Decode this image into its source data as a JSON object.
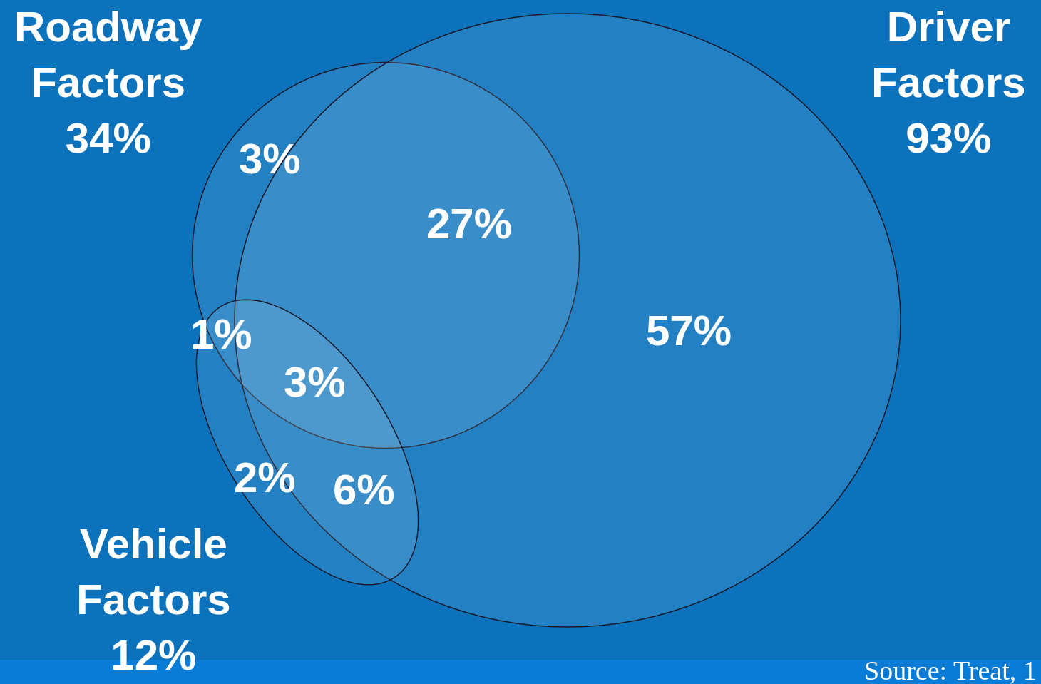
{
  "chart_data": {
    "type": "other",
    "categories": [
      "Roadway Factors",
      "Driver Factors",
      "Vehicle Factors"
    ],
    "values": [
      34,
      93,
      12
    ],
    "value_labels": [
      "34%",
      "93%",
      "12%"
    ],
    "annotations": [
      "3%",
      "27%",
      "1%",
      "3%",
      "2%",
      "6%",
      "57%",
      "Source: Treat, 1"
    ]
  }
}
